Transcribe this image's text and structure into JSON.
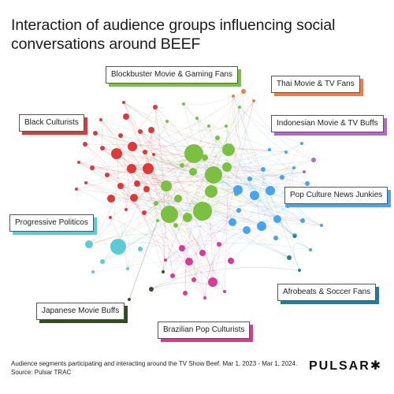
{
  "header": {
    "title": "Interaction of audience groups influencing social conversations around BEEF"
  },
  "segments": [
    {
      "label": "Blockbuster Movie & Gaming Fans",
      "color": "#7bc043"
    },
    {
      "label": "Thai Movie & TV Fans",
      "color": "#f07c4c"
    },
    {
      "label": "Black Culturists",
      "color": "#d93a3a"
    },
    {
      "label": "Indonesian Movie & TV Buffs",
      "color": "#b06ac2"
    },
    {
      "label": "Pop Culture News Junkies",
      "color": "#4aa3f0"
    },
    {
      "label": "Progressive Politicos",
      "color": "#5ccbd6"
    },
    {
      "label": "Afrobeats & Soccer Fans",
      "color": "#1f7ea0"
    },
    {
      "label": "Japanese Movie Buffs",
      "color": "#2f4f1f"
    },
    {
      "label": "Brazilian Pop Culturists",
      "color": "#d63b98"
    }
  ],
  "footer": {
    "caption": "Audience segments participating and interacting around the TV Show Beef. Mar 1, 2023 - Mar 1, 2024.",
    "source": "Source: Pulsar TRAC",
    "brand": "PULSAR✱"
  }
}
